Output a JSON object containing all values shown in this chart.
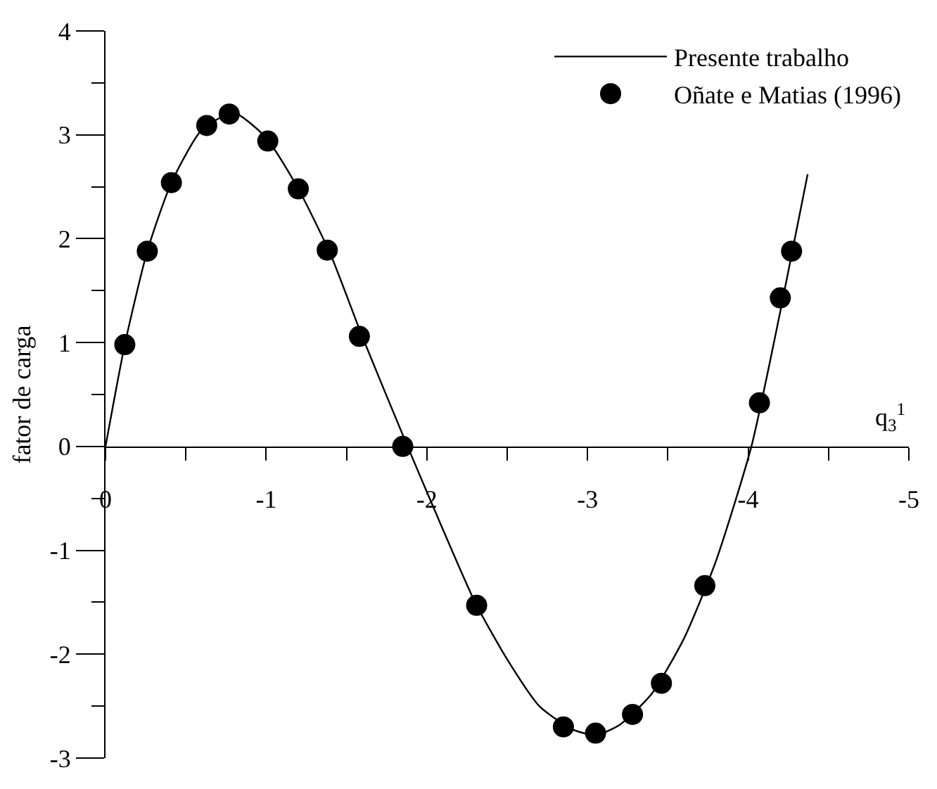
{
  "chart_data": {
    "type": "line",
    "ylabel": "fator de carga",
    "xlabel": "q$_{3}$$^{1}$",
    "xlim": [
      0,
      -5
    ],
    "xticks": [
      0,
      {
        "value": -0.5,
        "label": null
      },
      -1,
      {
        "value": -1.5,
        "label": null
      },
      -2,
      {
        "value": -2.5,
        "label": null
      },
      -3,
      {
        "value": -3.5,
        "label": null
      },
      -4,
      {
        "value": -4.5,
        "label": null
      },
      -5
    ],
    "ylim": [
      -3,
      4
    ],
    "yticks": [
      -3,
      {
        "value": -2.5,
        "label": null
      },
      -2,
      {
        "value": -1.5,
        "label": null
      },
      -1,
      {
        "value": -0.5,
        "label": null
      },
      0,
      {
        "value": 0.5,
        "label": null
      },
      1,
      {
        "value": 1.5,
        "label": null
      },
      2,
      {
        "value": 2.5,
        "label": null
      },
      3,
      {
        "value": 3.5,
        "label": null
      },
      4
    ],
    "legend": "top right",
    "series": [
      {
        "name": "Presente trabalho",
        "type": "line",
        "color": "#000000",
        "marker": "none",
        "line_style": "solid",
        "x": [
          0,
          -0.12,
          -0.26,
          -0.41,
          -0.6,
          -0.8,
          -1.0,
          -1.2,
          -1.4,
          -1.6,
          -1.88,
          -2.1,
          -2.3,
          -2.5,
          -2.7,
          -2.9,
          -3.05,
          -3.2,
          -3.4,
          -3.6,
          -3.8,
          -4.02,
          -4.2,
          -4.37
        ],
        "values": [
          0,
          0.98,
          1.88,
          2.54,
          3.05,
          3.21,
          2.97,
          2.48,
          1.85,
          1.05,
          0,
          -0.8,
          -1.5,
          -2.05,
          -2.5,
          -2.72,
          -2.78,
          -2.68,
          -2.38,
          -1.85,
          -1.1,
          0,
          1.3,
          2.62
        ]
      },
      {
        "name": "Oñate e Matias (1996)",
        "type": "scatter",
        "color": "#000000",
        "marker": "circle",
        "x": [
          -0.12,
          -0.26,
          -0.41,
          -0.63,
          -0.77,
          -1.01,
          -1.2,
          -1.38,
          -1.58,
          -1.85,
          -2.31,
          -2.85,
          -3.05,
          -3.28,
          -3.46,
          -3.73,
          -4.07,
          -4.2,
          -4.27
        ],
        "values": [
          0.98,
          1.88,
          2.54,
          3.09,
          3.2,
          2.94,
          2.48,
          1.89,
          1.06,
          0,
          -1.53,
          -2.7,
          -2.76,
          -2.58,
          -2.28,
          -1.34,
          0.42,
          1.43,
          1.88
        ]
      }
    ]
  }
}
